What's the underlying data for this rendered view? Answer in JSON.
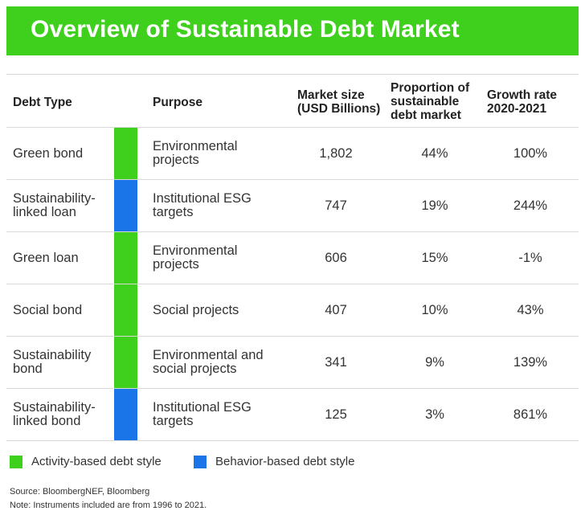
{
  "title": "Overview of Sustainable Debt Market",
  "colors": {
    "banner": "#3fd01e",
    "activity": "#3fd01e",
    "behavior": "#1a75e8"
  },
  "headers": {
    "debt_type": "Debt Type",
    "purpose": "Purpose",
    "market_size": "Market size\n(USD Billions)",
    "proportion": "Proportion of\nsustainable\ndebt market",
    "growth": "Growth rate\n2020-2021"
  },
  "legend": [
    {
      "label": "Activity-based debt style",
      "style": "activity"
    },
    {
      "label": "Behavior-based debt style",
      "style": "behavior"
    }
  ],
  "source": "Source: BloombergNEF, Bloomberg",
  "note": "Note: Instruments included are from 1996 to 2021.",
  "chart_data": {
    "type": "table",
    "title": "Overview of Sustainable Debt Market",
    "columns": [
      "Debt Type",
      "Purpose",
      "Market size (USD Billions)",
      "Proportion of sustainable debt market",
      "Growth rate 2020-2021"
    ],
    "rows": [
      {
        "type_lines": [
          "Green bond"
        ],
        "style": "activity",
        "purpose_lines": [
          "Environmental",
          "projects"
        ],
        "market_size": "1,802",
        "proportion": "44%",
        "growth": "100%"
      },
      {
        "type_lines": [
          "Sustainability-",
          "linked loan"
        ],
        "style": "behavior",
        "purpose_lines": [
          "Institutional ESG",
          "targets"
        ],
        "market_size": "747",
        "proportion": "19%",
        "growth": "244%"
      },
      {
        "type_lines": [
          "Green loan"
        ],
        "style": "activity",
        "purpose_lines": [
          "Environmental",
          "projects"
        ],
        "market_size": "606",
        "proportion": "15%",
        "growth": "-1%"
      },
      {
        "type_lines": [
          "Social bond"
        ],
        "style": "activity",
        "purpose_lines": [
          "Social projects"
        ],
        "market_size": "407",
        "proportion": "10%",
        "growth": "43%"
      },
      {
        "type_lines": [
          "Sustainability",
          "bond"
        ],
        "style": "activity",
        "purpose_lines": [
          "Environmental and",
          "social projects"
        ],
        "market_size": "341",
        "proportion": "9%",
        "growth": "139%"
      },
      {
        "type_lines": [
          "Sustainability-",
          "linked bond"
        ],
        "style": "behavior",
        "purpose_lines": [
          "Institutional ESG",
          "targets"
        ],
        "market_size": "125",
        "proportion": "3%",
        "growth": "861%"
      }
    ]
  }
}
